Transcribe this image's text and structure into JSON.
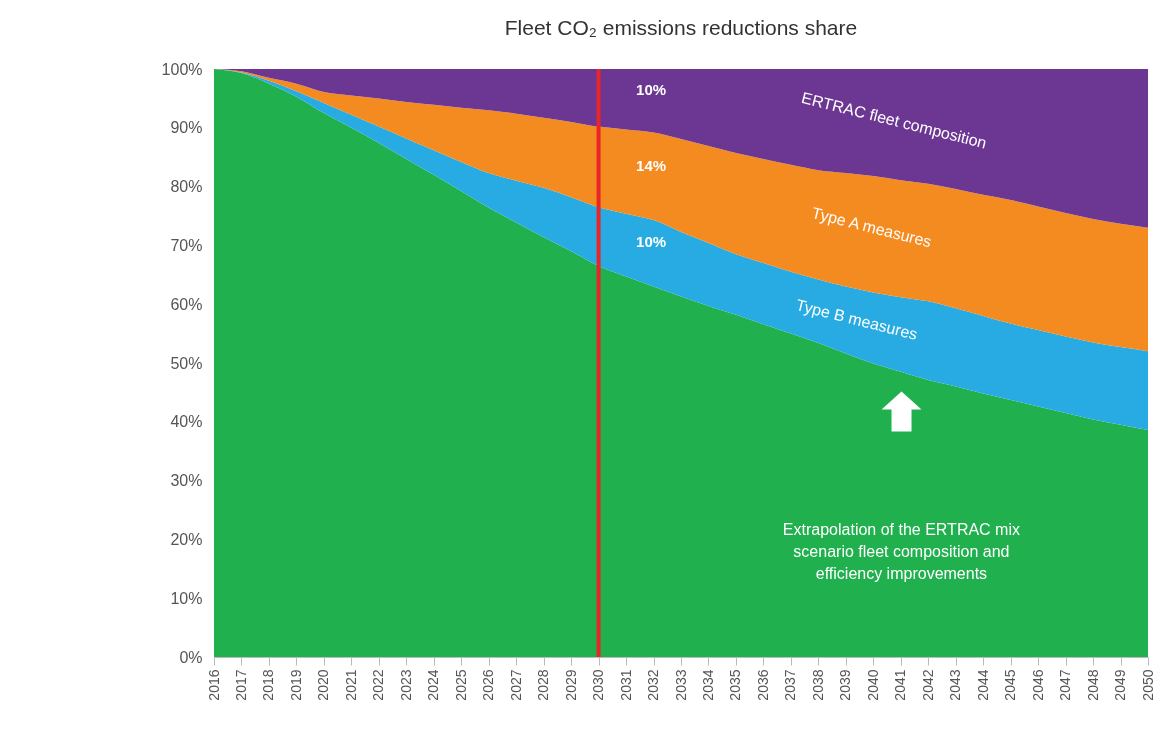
{
  "chart_data": {
    "type": "area",
    "title": "Fleet CO₂ emissions reductions share",
    "stacked": true,
    "grid": false,
    "legend": false,
    "x": [
      2016,
      2017,
      2018,
      2019,
      2020,
      2021,
      2022,
      2023,
      2024,
      2025,
      2026,
      2027,
      2028,
      2029,
      2030,
      2031,
      2032,
      2033,
      2034,
      2035,
      2036,
      2037,
      2038,
      2039,
      2040,
      2041,
      2042,
      2043,
      2044,
      2045,
      2046,
      2047,
      2048,
      2049,
      2050
    ],
    "xlim": [
      2016,
      2050
    ],
    "xticks": [
      2016,
      2017,
      2018,
      2019,
      2020,
      2021,
      2022,
      2023,
      2024,
      2025,
      2026,
      2027,
      2028,
      2029,
      2030,
      2031,
      2032,
      2033,
      2034,
      2035,
      2036,
      2037,
      2038,
      2039,
      2040,
      2041,
      2042,
      2043,
      2044,
      2045,
      2046,
      2047,
      2048,
      2049,
      2050
    ],
    "ylim": [
      0,
      100
    ],
    "yticks": [
      {
        "value": 0,
        "label": "0%"
      },
      {
        "value": 10,
        "label": "10%"
      },
      {
        "value": 20,
        "label": "20%"
      },
      {
        "value": 30,
        "label": "30%"
      },
      {
        "value": 40,
        "label": "40%"
      },
      {
        "value": 50,
        "label": "50%"
      },
      {
        "value": 60,
        "label": "60%"
      },
      {
        "value": 70,
        "label": "70%"
      },
      {
        "value": 80,
        "label": "80%"
      },
      {
        "value": 90,
        "label": "90%"
      },
      {
        "value": 100,
        "label": "100%"
      }
    ],
    "series": [
      {
        "color": "#20b04e",
        "values": [
          100,
          99.3,
          97.5,
          95.3,
          92.5,
          90,
          87.4,
          84.7,
          82,
          79.2,
          76.4,
          73.9,
          71.4,
          69,
          66.5,
          64.7,
          63,
          61.3,
          59.7,
          58.2,
          56.6,
          55,
          53.4,
          51.6,
          49.9,
          48.5,
          47.1,
          46,
          44.8,
          43.7,
          42.6,
          41.5,
          40.4,
          39.5,
          38.6
        ]
      },
      {
        "color": "#27abe2",
        "values": [
          0,
          0.1,
          0.5,
          0.9,
          1.7,
          2.2,
          2.8,
          3.5,
          4.2,
          5.0,
          5.9,
          7.1,
          8.4,
          9.2,
          10.0,
          10.7,
          11.3,
          11.0,
          10.7,
          10.3,
          10.4,
          10.5,
          10.8,
          11.4,
          12.1,
          12.7,
          13.4,
          13.3,
          13.2,
          13.0,
          13.0,
          13.0,
          13.1,
          13.2,
          13.4
        ]
      },
      {
        "color": "#f48b21",
        "values": [
          0,
          0.2,
          0.5,
          1.3,
          1.9,
          3.3,
          4.8,
          6.2,
          7.7,
          9.2,
          10.7,
          11.4,
          11.9,
          12.8,
          13.7,
          14.3,
          14.9,
          15.8,
          16.5,
          17.2,
          17.7,
          18.2,
          18.6,
          19.3,
          19.8,
          19.9,
          20.0,
          20.3,
          20.6,
          21.0,
          21.0,
          21.0,
          21.0,
          21.0,
          21.0
        ]
      },
      {
        "color": "#6c3793",
        "values": [
          0,
          0.4,
          1.5,
          2.5,
          3.9,
          4.5,
          5.0,
          5.6,
          6.1,
          6.6,
          7.0,
          7.6,
          8.3,
          9.0,
          9.8,
          10.3,
          10.8,
          11.9,
          13.1,
          14.3,
          15.3,
          16.3,
          17.2,
          17.7,
          18.2,
          18.9,
          19.5,
          20.4,
          21.4,
          22.3,
          23.4,
          24.5,
          25.5,
          26.3,
          27.0
        ]
      }
    ],
    "ref_lines": [
      {
        "axis": "x",
        "value": 2030,
        "color": "#e8262a"
      }
    ],
    "annotations": [
      "10%",
      "14%",
      "10%",
      "ERTRAC fleet composition",
      "Type A measures",
      "Type B measures",
      "Extrapolation of the ERTRAC mix scenario fleet composition and efficiency improvements"
    ]
  }
}
